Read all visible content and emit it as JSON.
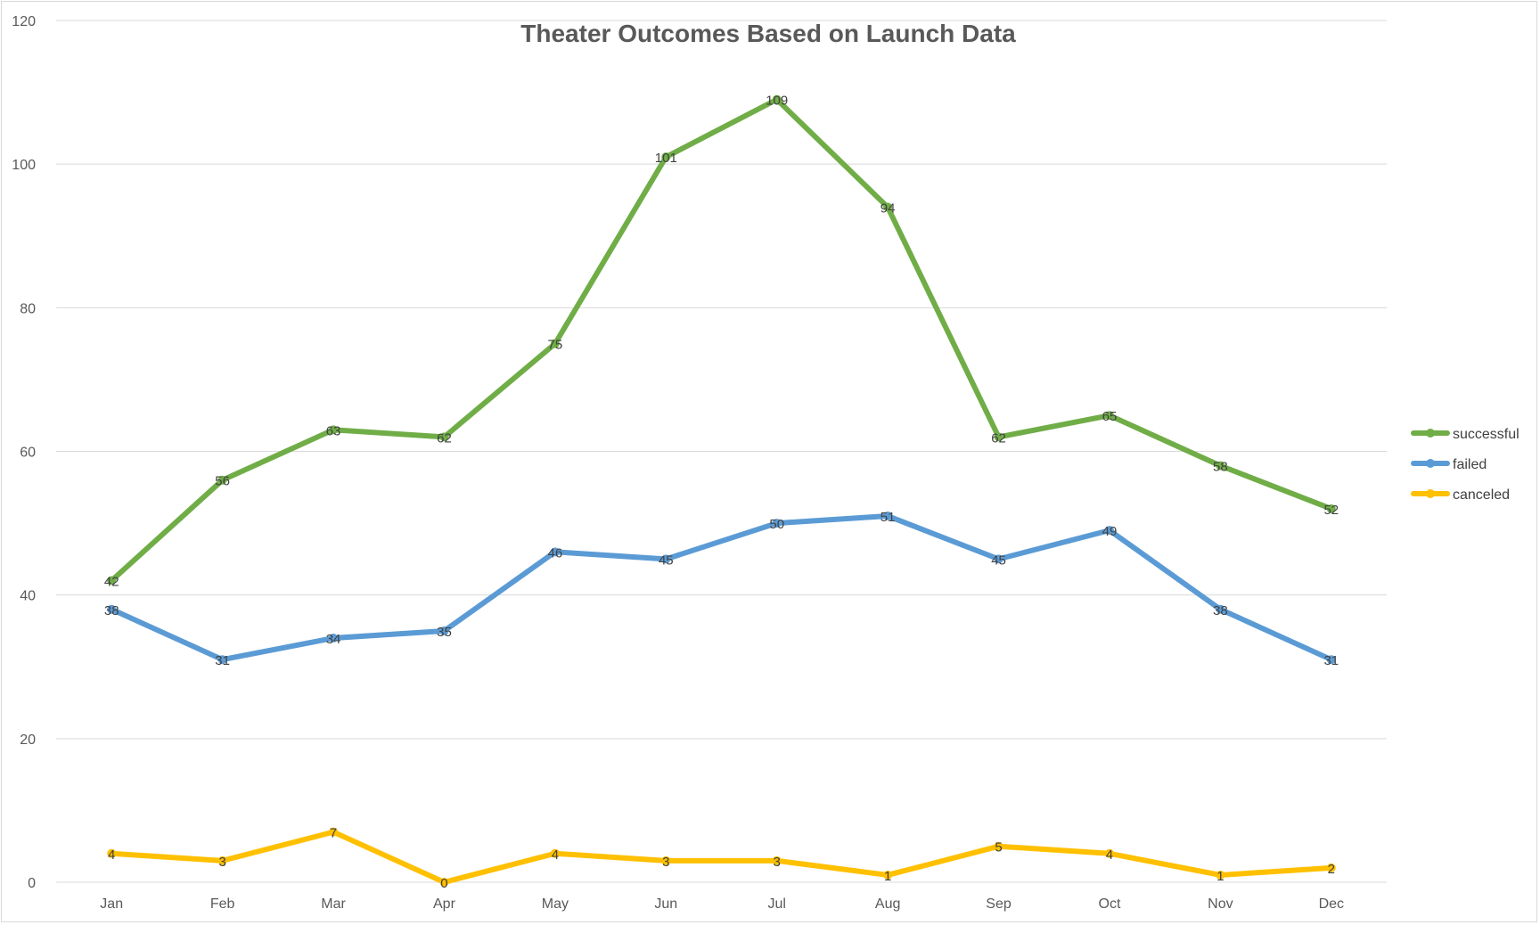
{
  "chart_data": {
    "type": "line",
    "title": "Theater Outcomes Based on Launch Data",
    "xlabel": "",
    "ylabel": "",
    "categories": [
      "Jan",
      "Feb",
      "Mar",
      "Apr",
      "May",
      "Jun",
      "Jul",
      "Aug",
      "Sep",
      "Oct",
      "Nov",
      "Dec"
    ],
    "series": [
      {
        "name": "successful",
        "color": "#70AD47",
        "values": [
          42,
          56,
          63,
          62,
          75,
          101,
          109,
          94,
          62,
          65,
          58,
          52
        ]
      },
      {
        "name": "failed",
        "color": "#5B9BD5",
        "values": [
          38,
          31,
          34,
          35,
          46,
          45,
          50,
          51,
          45,
          49,
          38,
          31
        ]
      },
      {
        "name": "canceled",
        "color": "#FFC000",
        "values": [
          4,
          3,
          7,
          0,
          4,
          3,
          3,
          1,
          5,
          4,
          1,
          2
        ]
      }
    ],
    "ylim": [
      0,
      120
    ],
    "yticks": [
      0,
      20,
      40,
      60,
      80,
      100,
      120
    ],
    "grid": true,
    "legend": "right",
    "data_labels": true
  }
}
